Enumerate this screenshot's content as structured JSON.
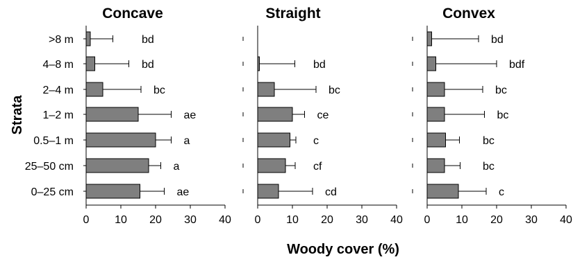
{
  "chart_data": {
    "type": "bar",
    "orientation": "horizontal",
    "xlabel": "Woody cover (%)",
    "ylabel": "Strata",
    "xlim": [
      0,
      40
    ],
    "xticks": [
      "0",
      "10",
      "20",
      "30",
      "40"
    ],
    "categories": [
      ">8 m",
      "4–8 m",
      "2–4 m",
      "1–2 m",
      "0.5–1 m",
      "25–50 cm",
      "0–25 cm"
    ],
    "bar_color": "#7f7f7f",
    "panels": [
      {
        "title": "Concave",
        "values": [
          1.2,
          2.5,
          4.8,
          15.0,
          20.0,
          18.0,
          15.5
        ],
        "errors": [
          6.5,
          9.8,
          11.0,
          9.5,
          4.5,
          3.5,
          7.0
        ],
        "letters": [
          "bd",
          "bd",
          "bc",
          "ae",
          "a",
          "a",
          "ae"
        ]
      },
      {
        "title": "Straight",
        "values": [
          0.0,
          0.5,
          4.8,
          10.0,
          9.3,
          8.0,
          6.0
        ],
        "errors": [
          0.0,
          10.2,
          12.0,
          3.5,
          1.7,
          2.8,
          9.8
        ],
        "letters": [
          "",
          "bd",
          "bc",
          "ce",
          "c",
          "cf",
          "cd"
        ]
      },
      {
        "title": "Convex",
        "values": [
          1.3,
          2.5,
          5.0,
          5.0,
          5.3,
          5.0,
          9.0
        ],
        "errors": [
          13.5,
          17.5,
          11.0,
          11.5,
          4.0,
          4.5,
          8.0
        ],
        "letters": [
          "bd",
          "bdf",
          "bc",
          "bc",
          "bc",
          "bc",
          "c"
        ]
      }
    ]
  }
}
